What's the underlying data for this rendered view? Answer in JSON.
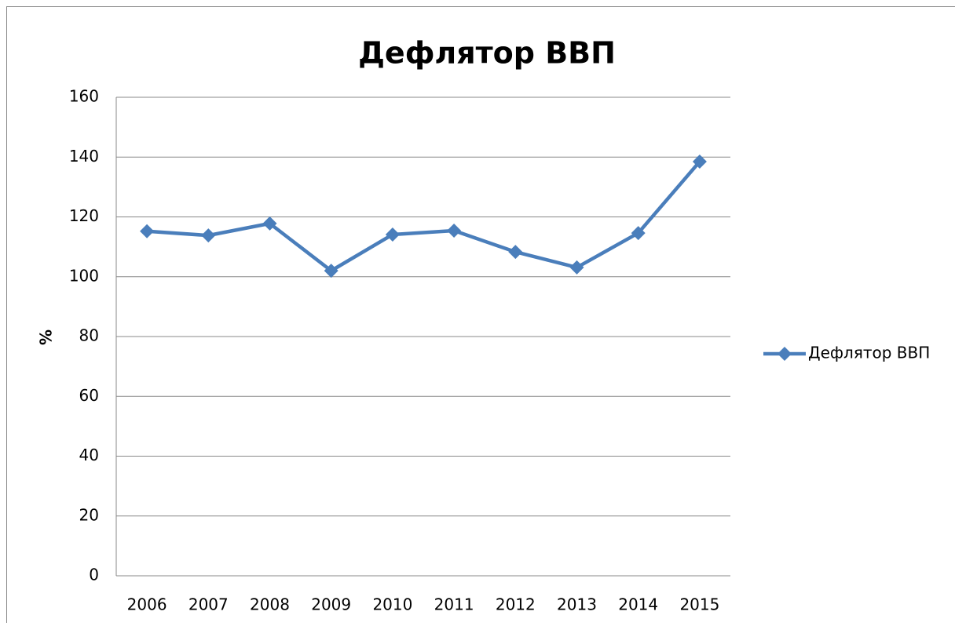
{
  "chart_data": {
    "type": "line",
    "title": "Дефлятор ВВП",
    "y_label": "%",
    "categories": [
      "2006",
      "2007",
      "2008",
      "2009",
      "2010",
      "2011",
      "2012",
      "2013",
      "2014",
      "2015"
    ],
    "series": [
      {
        "name": "Дефлятор ВВП",
        "color": "#4a7ebb",
        "values": [
          115.2,
          113.8,
          117.8,
          102,
          114.1,
          115.4,
          108.3,
          103.1,
          114.6,
          138.5
        ]
      }
    ],
    "ylim": [
      0,
      160
    ],
    "yticks": [
      0,
      20,
      40,
      60,
      80,
      100,
      120,
      140,
      160
    ],
    "grid": true,
    "legend": "right"
  }
}
